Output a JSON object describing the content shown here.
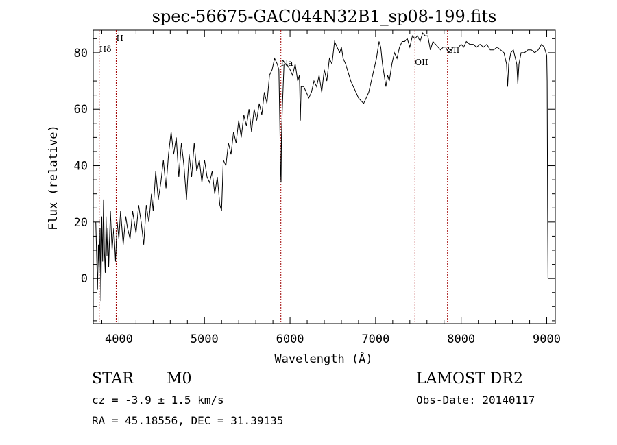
{
  "chart_data": {
    "type": "line",
    "title": "spec-56675-GAC044N32B1_sp08-199.fits",
    "xlabel": "Wavelength (Å)",
    "ylabel": "Flux (relative)",
    "xlim": [
      3700,
      9100
    ],
    "ylim": [
      -16,
      88
    ],
    "xticks": [
      4000,
      5000,
      6000,
      7000,
      8000,
      9000
    ],
    "yticks": [
      0,
      20,
      40,
      60,
      80
    ],
    "grid": false,
    "series": [
      {
        "points": [
          [
            3730,
            20
          ],
          [
            3740,
            8
          ],
          [
            3750,
            -4
          ],
          [
            3760,
            12
          ],
          [
            3770,
            2
          ],
          [
            3780,
            18
          ],
          [
            3790,
            -8
          ],
          [
            3800,
            22
          ],
          [
            3810,
            6
          ],
          [
            3820,
            28
          ],
          [
            3830,
            10
          ],
          [
            3840,
            2
          ],
          [
            3850,
            22
          ],
          [
            3860,
            8
          ],
          [
            3870,
            18
          ],
          [
            3880,
            4
          ],
          [
            3900,
            24
          ],
          [
            3920,
            10
          ],
          [
            3940,
            18
          ],
          [
            3960,
            6
          ],
          [
            3980,
            20
          ],
          [
            4000,
            14
          ],
          [
            4020,
            24
          ],
          [
            4050,
            12
          ],
          [
            4080,
            22
          ],
          [
            4100,
            18
          ],
          [
            4130,
            14
          ],
          [
            4160,
            24
          ],
          [
            4200,
            16
          ],
          [
            4230,
            26
          ],
          [
            4260,
            20
          ],
          [
            4290,
            12
          ],
          [
            4320,
            26
          ],
          [
            4350,
            20
          ],
          [
            4380,
            30
          ],
          [
            4400,
            24
          ],
          [
            4430,
            38
          ],
          [
            4460,
            28
          ],
          [
            4490,
            34
          ],
          [
            4520,
            42
          ],
          [
            4550,
            32
          ],
          [
            4580,
            44
          ],
          [
            4610,
            52
          ],
          [
            4640,
            44
          ],
          [
            4670,
            50
          ],
          [
            4700,
            36
          ],
          [
            4730,
            48
          ],
          [
            4760,
            40
          ],
          [
            4790,
            28
          ],
          [
            4820,
            44
          ],
          [
            4850,
            36
          ],
          [
            4880,
            48
          ],
          [
            4910,
            38
          ],
          [
            4940,
            42
          ],
          [
            4970,
            34
          ],
          [
            5000,
            42
          ],
          [
            5030,
            36
          ],
          [
            5060,
            34
          ],
          [
            5090,
            38
          ],
          [
            5120,
            30
          ],
          [
            5150,
            36
          ],
          [
            5180,
            26
          ],
          [
            5200,
            24
          ],
          [
            5220,
            42
          ],
          [
            5250,
            40
          ],
          [
            5280,
            48
          ],
          [
            5310,
            44
          ],
          [
            5340,
            52
          ],
          [
            5370,
            48
          ],
          [
            5400,
            56
          ],
          [
            5430,
            50
          ],
          [
            5460,
            58
          ],
          [
            5490,
            54
          ],
          [
            5520,
            60
          ],
          [
            5550,
            52
          ],
          [
            5580,
            60
          ],
          [
            5610,
            56
          ],
          [
            5640,
            62
          ],
          [
            5670,
            58
          ],
          [
            5700,
            66
          ],
          [
            5730,
            62
          ],
          [
            5760,
            72
          ],
          [
            5790,
            74
          ],
          [
            5820,
            78
          ],
          [
            5850,
            76
          ],
          [
            5870,
            74
          ],
          [
            5880,
            56
          ],
          [
            5890,
            38
          ],
          [
            5895,
            34
          ],
          [
            5900,
            50
          ],
          [
            5910,
            60
          ],
          [
            5930,
            76
          ],
          [
            5960,
            76
          ],
          [
            6000,
            74
          ],
          [
            6030,
            72
          ],
          [
            6060,
            76
          ],
          [
            6090,
            70
          ],
          [
            6110,
            72
          ],
          [
            6120,
            56
          ],
          [
            6130,
            68
          ],
          [
            6160,
            68
          ],
          [
            6190,
            66
          ],
          [
            6220,
            64
          ],
          [
            6250,
            66
          ],
          [
            6280,
            70
          ],
          [
            6310,
            68
          ],
          [
            6340,
            72
          ],
          [
            6370,
            66
          ],
          [
            6400,
            74
          ],
          [
            6430,
            70
          ],
          [
            6460,
            78
          ],
          [
            6490,
            76
          ],
          [
            6520,
            84
          ],
          [
            6550,
            82
          ],
          [
            6580,
            80
          ],
          [
            6600,
            82
          ],
          [
            6620,
            78
          ],
          [
            6650,
            76
          ],
          [
            6680,
            73
          ],
          [
            6710,
            70
          ],
          [
            6740,
            68
          ],
          [
            6770,
            66
          ],
          [
            6800,
            64
          ],
          [
            6830,
            63
          ],
          [
            6860,
            62
          ],
          [
            6890,
            64
          ],
          [
            6920,
            66
          ],
          [
            6950,
            70
          ],
          [
            6980,
            74
          ],
          [
            7010,
            78
          ],
          [
            7040,
            84
          ],
          [
            7060,
            82
          ],
          [
            7080,
            76
          ],
          [
            7100,
            72
          ],
          [
            7120,
            68
          ],
          [
            7140,
            72
          ],
          [
            7160,
            70
          ],
          [
            7190,
            76
          ],
          [
            7220,
            80
          ],
          [
            7250,
            78
          ],
          [
            7280,
            82
          ],
          [
            7310,
            84
          ],
          [
            7340,
            84
          ],
          [
            7370,
            85
          ],
          [
            7400,
            82
          ],
          [
            7430,
            86
          ],
          [
            7460,
            85
          ],
          [
            7490,
            86
          ],
          [
            7520,
            84
          ],
          [
            7550,
            87
          ],
          [
            7580,
            86
          ],
          [
            7610,
            86
          ],
          [
            7640,
            81
          ],
          [
            7670,
            84
          ],
          [
            7700,
            83
          ],
          [
            7730,
            82
          ],
          [
            7760,
            81
          ],
          [
            7790,
            82
          ],
          [
            7820,
            82
          ],
          [
            7850,
            80
          ],
          [
            7880,
            81
          ],
          [
            7910,
            82
          ],
          [
            7940,
            82
          ],
          [
            7970,
            82
          ],
          [
            8000,
            83
          ],
          [
            8030,
            82
          ],
          [
            8060,
            84
          ],
          [
            8100,
            83
          ],
          [
            8140,
            83
          ],
          [
            8180,
            82
          ],
          [
            8220,
            83
          ],
          [
            8260,
            82
          ],
          [
            8300,
            83
          ],
          [
            8340,
            81
          ],
          [
            8380,
            81
          ],
          [
            8420,
            82
          ],
          [
            8460,
            81
          ],
          [
            8500,
            80
          ],
          [
            8530,
            76
          ],
          [
            8542,
            68
          ],
          [
            8555,
            76
          ],
          [
            8580,
            80
          ],
          [
            8610,
            81
          ],
          [
            8650,
            76
          ],
          [
            8662,
            69
          ],
          [
            8675,
            76
          ],
          [
            8700,
            80
          ],
          [
            8740,
            80
          ],
          [
            8780,
            81
          ],
          [
            8820,
            81
          ],
          [
            8860,
            80
          ],
          [
            8900,
            81
          ],
          [
            8940,
            83
          ],
          [
            8970,
            82
          ],
          [
            8990,
            80
          ],
          [
            9000,
            79
          ],
          [
            9005,
            70
          ],
          [
            9010,
            25
          ],
          [
            9015,
            0
          ]
        ]
      }
    ],
    "markers": [
      {
        "label": "Hδ",
        "x": 3770
      },
      {
        "label": "H",
        "x": 3968
      },
      {
        "label": "Na",
        "x": 5893
      },
      {
        "label": "OII",
        "x": 7460
      },
      {
        "label": "SII",
        "x": 7840
      }
    ]
  },
  "info": {
    "object_class": "STAR",
    "subclass": "M0",
    "survey": "LAMOST DR2",
    "redshift": "cz = -3.9 ± 1.5 km/s",
    "obs_date": "Obs-Date: 20140117",
    "coords": "RA =  45.18556, DEC =  31.39135"
  }
}
